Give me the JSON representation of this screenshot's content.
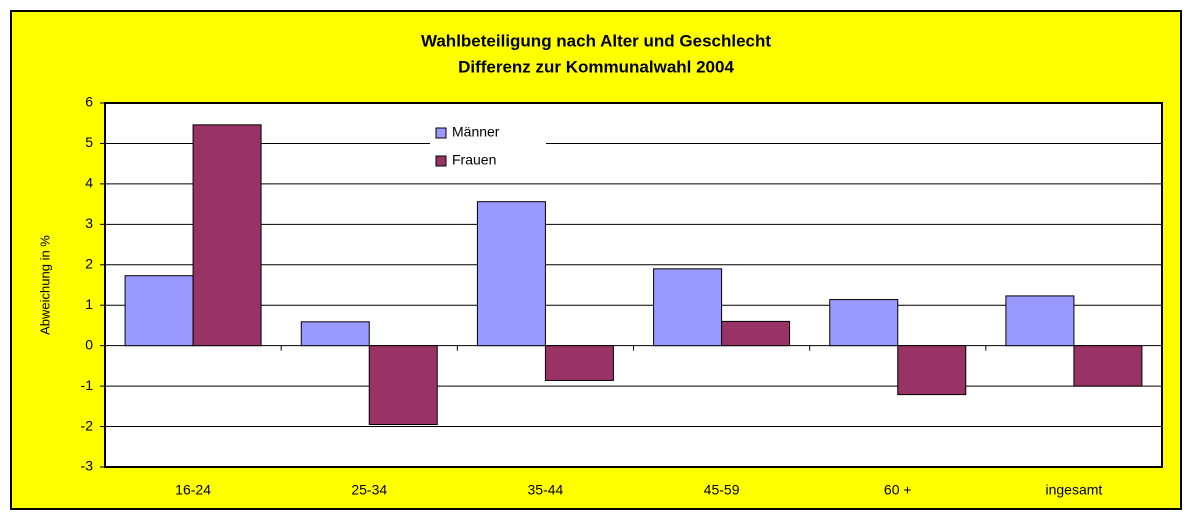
{
  "chart_data": {
    "type": "bar",
    "title": "Wahlbeteiligung nach Alter und Geschlecht",
    "subtitle": "Differenz zur Kommunalwahl 2004",
    "y_label": "Abweichung in %",
    "categories": [
      "16-24",
      "25-34",
      "35-44",
      "45-59",
      "60 +",
      "ingesamt"
    ],
    "series": [
      {
        "name": "Männer",
        "color": "#9999ff",
        "values": [
          1.73,
          0.59,
          3.56,
          1.9,
          1.14,
          1.23
        ]
      },
      {
        "name": "Frauen",
        "color": "#993366",
        "values": [
          5.46,
          -1.95,
          -0.86,
          0.6,
          -1.21,
          -1.0
        ]
      }
    ],
    "ylim": [
      -3,
      6
    ],
    "yticks": [
      -3,
      -2,
      -1,
      0,
      1,
      2,
      3,
      4,
      5,
      6
    ],
    "grid": true,
    "legend": "top-left"
  }
}
